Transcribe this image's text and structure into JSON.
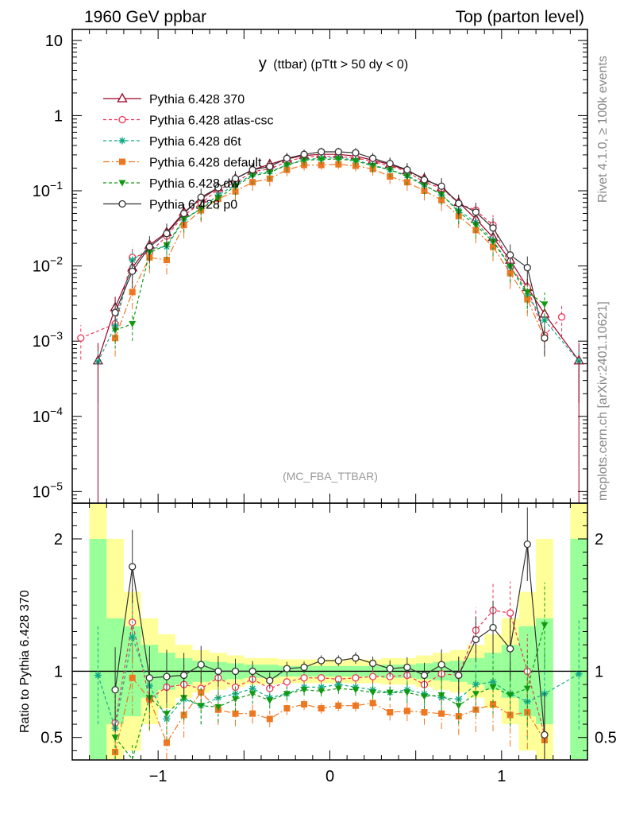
{
  "header": {
    "left_title": "1960 GeV ppbar",
    "right_title": "Top (parton level)"
  },
  "plot_title": {
    "main": "y",
    "sub": "(ttbar) (pTtt > 50 dy < 0)"
  },
  "side_labels": {
    "rivet": "Rivet 4.1.0, ≥ 100k events",
    "mcplots": "mcplots.cern.ch [arXiv:2401.10621]"
  },
  "watermark": "(MC_FBA_TTBAR)",
  "ratio_ylabel": "Ratio to Pythia 6.428 370",
  "chart_data": [
    {
      "type": "line",
      "title": "y (ttbar) (pTtt > 50 dy < 0)",
      "xlabel": "",
      "ylabel": "",
      "yscale": "log",
      "xlim": [
        -1.5,
        1.5
      ],
      "ylim": [
        7e-06,
        14
      ],
      "ytick_labels": [
        {
          "v": 10,
          "base": "10",
          "exp": ""
        },
        {
          "v": 1,
          "base": "1",
          "exp": ""
        },
        {
          "v": 0.1,
          "base": "10",
          "exp": "−1"
        },
        {
          "v": 0.01,
          "base": "10",
          "exp": "−2"
        },
        {
          "v": 0.001,
          "base": "10",
          "exp": "−3"
        },
        {
          "v": 0.0001,
          "base": "10",
          "exp": "−4"
        },
        {
          "v": 1e-05,
          "base": "10",
          "exp": "−5"
        }
      ],
      "x": [
        -1.45,
        -1.35,
        -1.25,
        -1.15,
        -1.05,
        -0.95,
        -0.85,
        -0.75,
        -0.65,
        -0.55,
        -0.45,
        -0.35,
        -0.25,
        -0.15,
        -0.05,
        0.05,
        0.15,
        0.25,
        0.35,
        0.45,
        0.55,
        0.65,
        0.75,
        0.85,
        0.95,
        1.05,
        1.15,
        1.25,
        1.35,
        1.45
      ],
      "series": [
        {
          "name": "Pythia 6.428 370",
          "color": "#990022",
          "dash": "",
          "marker": "triangle-open",
          "values": [
            null,
            0.00055,
            0.0028,
            0.0095,
            0.019,
            0.028,
            0.052,
            0.078,
            0.11,
            0.145,
            0.19,
            0.225,
            0.265,
            0.295,
            0.305,
            0.305,
            0.29,
            0.255,
            0.225,
            0.185,
            0.145,
            0.11,
            0.07,
            0.042,
            0.024,
            0.012,
            0.0052,
            0.0023,
            null,
            0.00055
          ],
          "errors": [
            null,
            0.0004,
            0.0011,
            0.002,
            0.0025,
            0.003,
            0.004,
            0.005,
            0.006,
            0.007,
            0.008,
            0.008,
            0.009,
            0.009,
            0.009,
            0.009,
            0.009,
            0.009,
            0.008,
            0.008,
            0.007,
            0.006,
            0.005,
            0.004,
            0.003,
            0.0022,
            0.0015,
            0.0009,
            null,
            0.0004
          ]
        },
        {
          "name": "Pythia 6.428 atlas-csc",
          "color": "#ee3355",
          "dash": "4,3",
          "marker": "circle-open",
          "values": [
            0.0011,
            null,
            0.0017,
            0.013,
            0.015,
            0.025,
            0.047,
            0.068,
            0.105,
            0.128,
            0.18,
            0.195,
            0.245,
            0.28,
            0.29,
            0.285,
            0.275,
            0.245,
            0.215,
            0.18,
            0.13,
            0.108,
            0.068,
            0.055,
            0.035,
            0.0095,
            0.0052,
            0.0012,
            0.0021,
            null
          ]
        },
        {
          "name": "Pythia 6.428 d6t",
          "color": "#11aa88",
          "dash": "4,3",
          "marker": "star",
          "values": [
            null,
            0.00053,
            0.0016,
            0.012,
            0.017,
            0.018,
            0.041,
            0.058,
            0.088,
            0.12,
            0.165,
            0.18,
            0.22,
            0.26,
            0.27,
            0.275,
            0.255,
            0.22,
            0.19,
            0.16,
            0.12,
            0.088,
            0.055,
            0.038,
            0.022,
            0.01,
            0.004,
            0.0019,
            null,
            0.00054
          ]
        },
        {
          "name": "Pythia 6.428 default",
          "color": "#ee7722",
          "dash": "8,3,2,3",
          "marker": "square",
          "values": [
            null,
            null,
            0.0011,
            0.0045,
            0.013,
            0.012,
            0.035,
            0.055,
            0.078,
            0.098,
            0.13,
            0.145,
            0.19,
            0.22,
            0.22,
            0.225,
            0.215,
            0.195,
            0.155,
            0.13,
            0.1,
            0.075,
            0.046,
            0.03,
            0.018,
            0.008,
            0.0036,
            0.0011,
            null,
            null
          ]
        },
        {
          "name": "Pythia 6.428 dw",
          "color": "#119911",
          "dash": "4,3",
          "marker": "triangle-down",
          "values": [
            null,
            null,
            0.0014,
            0.0017,
            0.015,
            0.019,
            0.042,
            0.058,
            0.08,
            0.115,
            0.158,
            0.175,
            0.22,
            0.255,
            0.26,
            0.265,
            0.25,
            0.215,
            0.19,
            0.155,
            0.118,
            0.09,
            0.052,
            0.035,
            0.021,
            0.0098,
            0.0045,
            0.0031,
            null,
            null
          ]
        },
        {
          "name": "Pythia 6.428 p0",
          "color": "#333333",
          "dash": "",
          "marker": "circle-open",
          "values": [
            null,
            null,
            0.0024,
            0.0085,
            0.018,
            0.027,
            0.05,
            0.082,
            0.11,
            0.145,
            0.19,
            0.21,
            0.27,
            0.305,
            0.33,
            0.33,
            0.32,
            0.27,
            0.23,
            0.19,
            0.14,
            0.115,
            0.068,
            0.052,
            0.032,
            0.014,
            0.0095,
            0.0011,
            null,
            null
          ]
        }
      ]
    },
    {
      "type": "line",
      "title": "",
      "xlabel": "",
      "ylabel": "Ratio to Pythia 6.428 370",
      "yscale": "linear",
      "xlim": [
        -1.5,
        1.5
      ],
      "ylim": [
        0.33,
        2.27
      ],
      "ytick_labels": [
        {
          "v": 2,
          "label": "2"
        },
        {
          "v": 1,
          "label": "1"
        },
        {
          "v": 0.5,
          "label": "0.5"
        }
      ],
      "xtick_labels": [
        {
          "v": -1,
          "label": "−1"
        },
        {
          "v": 0,
          "label": "0"
        },
        {
          "v": 1,
          "label": "1"
        }
      ],
      "x": [
        -1.45,
        -1.35,
        -1.25,
        -1.15,
        -1.05,
        -0.95,
        -0.85,
        -0.75,
        -0.65,
        -0.55,
        -0.45,
        -0.35,
        -0.25,
        -0.15,
        -0.05,
        0.05,
        0.15,
        0.25,
        0.35,
        0.45,
        0.55,
        0.65,
        0.75,
        0.85,
        0.95,
        1.05,
        1.15,
        1.25,
        1.35,
        1.45
      ],
      "uncertainty_band_green": [
        null,
        2.0,
        1.4,
        1.34,
        1.2,
        1.14,
        1.1,
        1.08,
        1.07,
        1.06,
        1.05,
        1.05,
        1.04,
        1.04,
        1.04,
        1.04,
        1.04,
        1.04,
        1.05,
        1.05,
        1.06,
        1.07,
        1.08,
        1.1,
        1.14,
        1.2,
        1.34,
        1.4,
        null,
        2.0
      ],
      "uncertainty_band_yellow": [
        null,
        2.3,
        2.0,
        1.6,
        1.4,
        1.28,
        1.2,
        1.16,
        1.14,
        1.12,
        1.1,
        1.1,
        1.09,
        1.09,
        1.09,
        1.09,
        1.09,
        1.09,
        1.1,
        1.1,
        1.12,
        1.14,
        1.16,
        1.2,
        1.28,
        1.4,
        1.6,
        2.0,
        null,
        2.3
      ],
      "series": [
        {
          "name": "Pythia 6.428 atlas-csc",
          "color": "#ee3355",
          "dash": "4,3",
          "marker": "circle-open",
          "values": [
            null,
            null,
            0.61,
            1.37,
            0.79,
            0.88,
            0.9,
            0.87,
            0.95,
            0.88,
            0.94,
            0.87,
            0.92,
            0.95,
            0.95,
            0.94,
            0.95,
            0.96,
            0.96,
            0.97,
            0.9,
            0.98,
            0.97,
            1.31,
            1.46,
            1.44,
            1.0,
            0.52,
            null,
            null
          ]
        },
        {
          "name": "Pythia 6.428 d6t",
          "color": "#11aa88",
          "dash": "4,3",
          "marker": "star",
          "values": [
            null,
            0.97,
            0.57,
            1.26,
            0.89,
            0.64,
            0.79,
            0.74,
            0.8,
            0.83,
            0.87,
            0.8,
            0.83,
            0.88,
            0.88,
            0.9,
            0.88,
            0.86,
            0.84,
            0.86,
            0.83,
            0.8,
            0.79,
            0.9,
            0.92,
            0.83,
            0.77,
            0.83,
            null,
            0.98
          ]
        },
        {
          "name": "Pythia 6.428 default",
          "color": "#ee7722",
          "dash": "8,3,2,3",
          "marker": "square",
          "values": [
            null,
            null,
            0.39,
            0.95,
            0.79,
            0.46,
            0.67,
            0.84,
            0.71,
            0.68,
            0.68,
            0.64,
            0.72,
            0.75,
            0.72,
            0.74,
            0.74,
            0.76,
            0.69,
            0.7,
            0.69,
            0.68,
            0.66,
            0.71,
            0.75,
            0.67,
            0.69,
            0.48,
            null,
            null
          ]
        },
        {
          "name": "Pythia 6.428 dw",
          "color": "#119911",
          "dash": "4,3",
          "marker": "triangle-down",
          "values": [
            null,
            null,
            0.5,
            0.18,
            0.8,
            0.68,
            0.8,
            0.74,
            0.73,
            0.79,
            0.83,
            0.78,
            0.83,
            0.86,
            0.85,
            0.87,
            0.86,
            0.84,
            0.84,
            0.84,
            0.81,
            0.82,
            0.74,
            0.83,
            0.88,
            0.82,
            0.87,
            1.35,
            null,
            null
          ]
        },
        {
          "name": "Pythia 6.428 p0",
          "color": "#333333",
          "dash": "",
          "marker": "circle-open",
          "values": [
            null,
            null,
            0.86,
            1.79,
            0.95,
            0.96,
            0.97,
            1.05,
            1.0,
            1.0,
            1.0,
            0.93,
            1.02,
            1.03,
            1.08,
            1.08,
            1.1,
            1.06,
            1.02,
            1.03,
            0.97,
            1.05,
            0.97,
            1.24,
            1.33,
            1.17,
            1.96,
            0.52,
            null,
            null
          ]
        }
      ]
    }
  ]
}
